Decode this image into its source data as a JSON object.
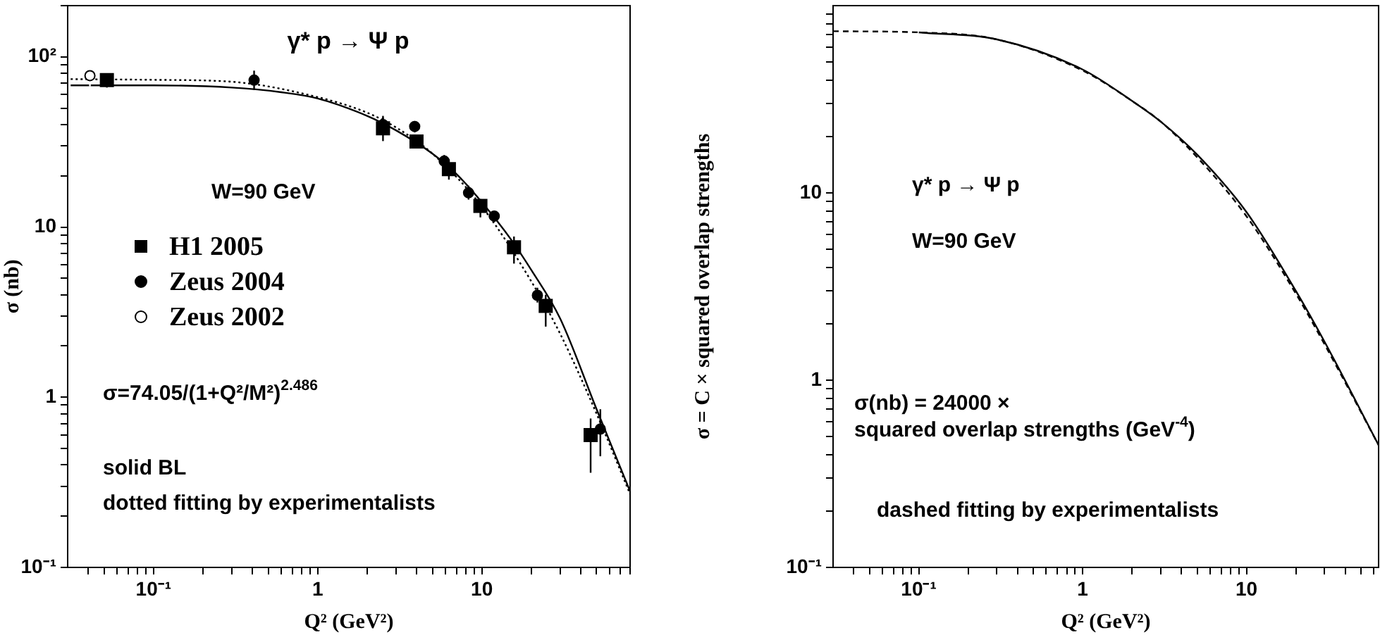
{
  "chart_data": [
    {
      "type": "scatter",
      "title": "γ* p → Ψ p",
      "xlabel": "Q² (GeV²)",
      "ylabel": "σ (nb)",
      "log": "xy",
      "legend": "left",
      "xlim": [
        0.03,
        80
      ],
      "ylim": [
        0.1,
        200
      ],
      "xticks": [
        {
          "value": 0.04,
          "label": null
        },
        {
          "value": 0.05,
          "label": null
        },
        {
          "value": 0.06,
          "label": null
        },
        {
          "value": 0.07,
          "label": null
        },
        {
          "value": 0.08,
          "label": null
        },
        {
          "value": 0.09,
          "label": null
        },
        {
          "value": 0.1,
          "label": "10⁻¹"
        },
        {
          "value": 0.2,
          "label": null
        },
        {
          "value": 0.3,
          "label": null
        },
        {
          "value": 0.4,
          "label": null
        },
        {
          "value": 0.5,
          "label": null
        },
        {
          "value": 0.6,
          "label": null
        },
        {
          "value": 0.7,
          "label": null
        },
        {
          "value": 0.8,
          "label": null
        },
        {
          "value": 0.9,
          "label": null
        },
        {
          "value": 1,
          "label": "1"
        },
        {
          "value": 2,
          "label": null
        },
        {
          "value": 3,
          "label": null
        },
        {
          "value": 4,
          "label": null
        },
        {
          "value": 5,
          "label": null
        },
        {
          "value": 6,
          "label": null
        },
        {
          "value": 7,
          "label": null
        },
        {
          "value": 8,
          "label": null
        },
        {
          "value": 9,
          "label": null
        },
        {
          "value": 10,
          "label": "10"
        },
        {
          "value": 20,
          "label": null
        },
        {
          "value": 30,
          "label": null
        },
        {
          "value": 40,
          "label": null
        },
        {
          "value": 50,
          "label": null
        },
        {
          "value": 60,
          "label": null
        },
        {
          "value": 70,
          "label": null
        },
        {
          "value": 80,
          "label": null
        }
      ],
      "yticks": [
        {
          "value": 0.1,
          "label": "10⁻¹"
        },
        {
          "value": 0.2,
          "label": null
        },
        {
          "value": 0.3,
          "label": null
        },
        {
          "value": 0.4,
          "label": null
        },
        {
          "value": 0.5,
          "label": null
        },
        {
          "value": 0.6,
          "label": null
        },
        {
          "value": 0.7,
          "label": null
        },
        {
          "value": 0.8,
          "label": null
        },
        {
          "value": 0.9,
          "label": null
        },
        {
          "value": 1,
          "label": "1"
        },
        {
          "value": 2,
          "label": null
        },
        {
          "value": 3,
          "label": null
        },
        {
          "value": 4,
          "label": null
        },
        {
          "value": 5,
          "label": null
        },
        {
          "value": 6,
          "label": null
        },
        {
          "value": 7,
          "label": null
        },
        {
          "value": 8,
          "label": null
        },
        {
          "value": 9,
          "label": null
        },
        {
          "value": 10,
          "label": "10"
        },
        {
          "value": 20,
          "label": null
        },
        {
          "value": 30,
          "label": null
        },
        {
          "value": 40,
          "label": null
        },
        {
          "value": 50,
          "label": null
        },
        {
          "value": 60,
          "label": null
        },
        {
          "value": 70,
          "label": null
        },
        {
          "value": 80,
          "label": null
        },
        {
          "value": 90,
          "label": null
        },
        {
          "value": 100,
          "label": "10²"
        },
        {
          "value": 200,
          "label": null
        }
      ],
      "annotations": [
        "W=90 GeV",
        "σ=74.05/(1+Q²/M²)$^{2.486}$",
        "solid BL",
        "dotted fitting by experimentalists"
      ],
      "series": [
        {
          "type": "line",
          "color": "#000000",
          "marker": "none",
          "line_style": "solid",
          "x": [
            0.0313,
            0.1,
            0.3,
            0.6,
            1,
            2,
            3,
            5,
            7,
            10,
            15,
            20,
            30,
            50,
            80
          ],
          "values": [
            68,
            68,
            66,
            62,
            57,
            45,
            37,
            27,
            20.5,
            14,
            8.5,
            5.6,
            2.9,
            0.85,
            0.28
          ]
        },
        {
          "type": "line",
          "color": "#000000",
          "marker": "none",
          "line_style": "dotted",
          "x": [
            0.0313,
            0.1,
            0.3,
            1,
            2,
            3,
            5,
            10,
            20,
            30,
            50,
            80
          ],
          "values": [
            74,
            73.3,
            71.4,
            58,
            47,
            38.5,
            27,
            13.2,
            4.8,
            2.36,
            0.8,
            0.27
          ]
        },
        {
          "name": "H1 2005",
          "color": "#000000",
          "marker": "square",
          "x": [
            0.052,
            2.5,
            4.0,
            6.3,
            9.8,
            15.7,
            24.5,
            46
          ],
          "values": [
            73,
            38,
            31.8,
            21.9,
            13.3,
            7.6,
            3.44,
            0.6
          ],
          "errors": [
            [
              66,
              80
            ],
            [
              32,
              45
            ],
            [
              29,
              35
            ],
            [
              19,
              25
            ],
            [
              11.4,
              14.6
            ],
            [
              6.1,
              8.8
            ],
            [
              2.6,
              4
            ],
            [
              0.36,
              0.75
            ]
          ]
        },
        {
          "name": "Zeus 2004",
          "color": "#000000",
          "marker": "circle",
          "x": [
            0.41,
            2.5,
            3.9,
            5.9,
            8.3,
            11.9,
            21.8,
            52.7
          ],
          "values": [
            73,
            40,
            39,
            24.4,
            15.9,
            11.6,
            3.97,
            0.65
          ],
          "errors": [
            [
              64,
              83
            ],
            [
              36,
              44
            ],
            [
              36,
              42
            ],
            [
              22.5,
              26.5
            ],
            [
              14.5,
              17.5
            ],
            [
              10.7,
              12.5
            ],
            [
              3.6,
              4.4
            ],
            [
              0.45,
              0.85
            ]
          ]
        },
        {
          "name": "Zeus 2002",
          "color": "#ffffff",
          "marker": "circle",
          "x": [
            0.041
          ],
          "values": [
            77.6
          ],
          "errors": [
            [
              67,
              88
            ]
          ]
        }
      ]
    },
    {
      "type": "line",
      "xlabel": "Q² (GeV²)",
      "ylabel": "σ = C × squared overlap strengths",
      "log": "xy",
      "xlim": [
        0.03,
        64
      ],
      "ylim": [
        0.1,
        100
      ],
      "xticks": [
        {
          "value": 0.04,
          "label": null
        },
        {
          "value": 0.05,
          "label": null
        },
        {
          "value": 0.06,
          "label": null
        },
        {
          "value": 0.07,
          "label": null
        },
        {
          "value": 0.08,
          "label": null
        },
        {
          "value": 0.09,
          "label": null
        },
        {
          "value": 0.1,
          "label": "10⁻¹"
        },
        {
          "value": 0.2,
          "label": null
        },
        {
          "value": 0.3,
          "label": null
        },
        {
          "value": 0.4,
          "label": null
        },
        {
          "value": 0.5,
          "label": null
        },
        {
          "value": 0.6,
          "label": null
        },
        {
          "value": 0.7,
          "label": null
        },
        {
          "value": 0.8,
          "label": null
        },
        {
          "value": 0.9,
          "label": null
        },
        {
          "value": 1,
          "label": "1"
        },
        {
          "value": 2,
          "label": null
        },
        {
          "value": 3,
          "label": null
        },
        {
          "value": 4,
          "label": null
        },
        {
          "value": 5,
          "label": null
        },
        {
          "value": 6,
          "label": null
        },
        {
          "value": 7,
          "label": null
        },
        {
          "value": 8,
          "label": null
        },
        {
          "value": 9,
          "label": null
        },
        {
          "value": 10,
          "label": "10"
        },
        {
          "value": 20,
          "label": null
        },
        {
          "value": 30,
          "label": null
        },
        {
          "value": 40,
          "label": null
        },
        {
          "value": 50,
          "label": null
        },
        {
          "value": 60,
          "label": null
        }
      ],
      "yticks": [
        {
          "value": 0.1,
          "label": "10⁻¹"
        },
        {
          "value": 0.2,
          "label": null
        },
        {
          "value": 0.3,
          "label": null
        },
        {
          "value": 0.4,
          "label": null
        },
        {
          "value": 0.5,
          "label": null
        },
        {
          "value": 0.6,
          "label": null
        },
        {
          "value": 0.7,
          "label": null
        },
        {
          "value": 0.8,
          "label": null
        },
        {
          "value": 0.9,
          "label": null
        },
        {
          "value": 1,
          "label": "1"
        },
        {
          "value": 2,
          "label": null
        },
        {
          "value": 3,
          "label": null
        },
        {
          "value": 4,
          "label": null
        },
        {
          "value": 5,
          "label": null
        },
        {
          "value": 6,
          "label": null
        },
        {
          "value": 7,
          "label": null
        },
        {
          "value": 8,
          "label": null
        },
        {
          "value": 9,
          "label": null
        },
        {
          "value": 10,
          "label": "10"
        },
        {
          "value": 20,
          "label": null
        },
        {
          "value": 30,
          "label": null
        },
        {
          "value": 40,
          "label": null
        },
        {
          "value": 50,
          "label": null
        },
        {
          "value": 60,
          "label": null
        },
        {
          "value": 70,
          "label": null
        },
        {
          "value": 80,
          "label": null
        },
        {
          "value": 90,
          "label": null
        }
      ],
      "annotations": [
        "γ* p → Ψ p",
        "W=90 GeV",
        "σ(nb) = 24000 ×",
        "squared overlap strengths (GeV$^{-4}$)",
        "dashed fitting by experimentalists"
      ],
      "series": [
        {
          "color": "#000000",
          "line_style": "solid",
          "x": [
            0.1,
            0.3,
            1,
            2,
            3,
            5,
            10,
            20,
            30,
            64
          ],
          "values": [
            72,
            66,
            45.6,
            31,
            24,
            16,
            7.9,
            3.0,
            1.6,
            0.45
          ]
        },
        {
          "color": "#000000",
          "line_style": "dashed",
          "x": [
            0.03,
            0.1,
            0.3,
            1,
            2,
            3,
            5,
            10,
            20,
            30,
            64
          ],
          "values": [
            73,
            72,
            66,
            45,
            31,
            24,
            15.5,
            7.5,
            2.9,
            1.55,
            0.45
          ]
        }
      ]
    }
  ]
}
